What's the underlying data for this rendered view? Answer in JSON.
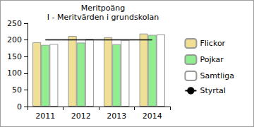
{
  "chart_data": {
    "type": "bar",
    "title": "Meritpoäng",
    "subtitle": "I - Meritvärden i grundskolan",
    "categories": [
      "2011",
      "2012",
      "2013",
      "2014"
    ],
    "series": [
      {
        "name": "Flickor",
        "color": "#f0e096",
        "values": [
          193,
          212,
          208,
          219
        ]
      },
      {
        "name": "Pojkar",
        "color": "#90ee90",
        "values": [
          185,
          192,
          187,
          215
        ]
      },
      {
        "name": "Samtliga",
        "color": "#ffffff",
        "values": [
          188,
          203,
          200,
          217
        ]
      },
      {
        "name": "Styrtal",
        "color": "#000000",
        "type": "line",
        "values": [
          200,
          200,
          200,
          200
        ]
      }
    ],
    "ylim": [
      0,
      250
    ],
    "yticks": [
      0,
      50,
      100,
      150,
      200,
      250
    ],
    "grid": false,
    "legend": "right"
  }
}
